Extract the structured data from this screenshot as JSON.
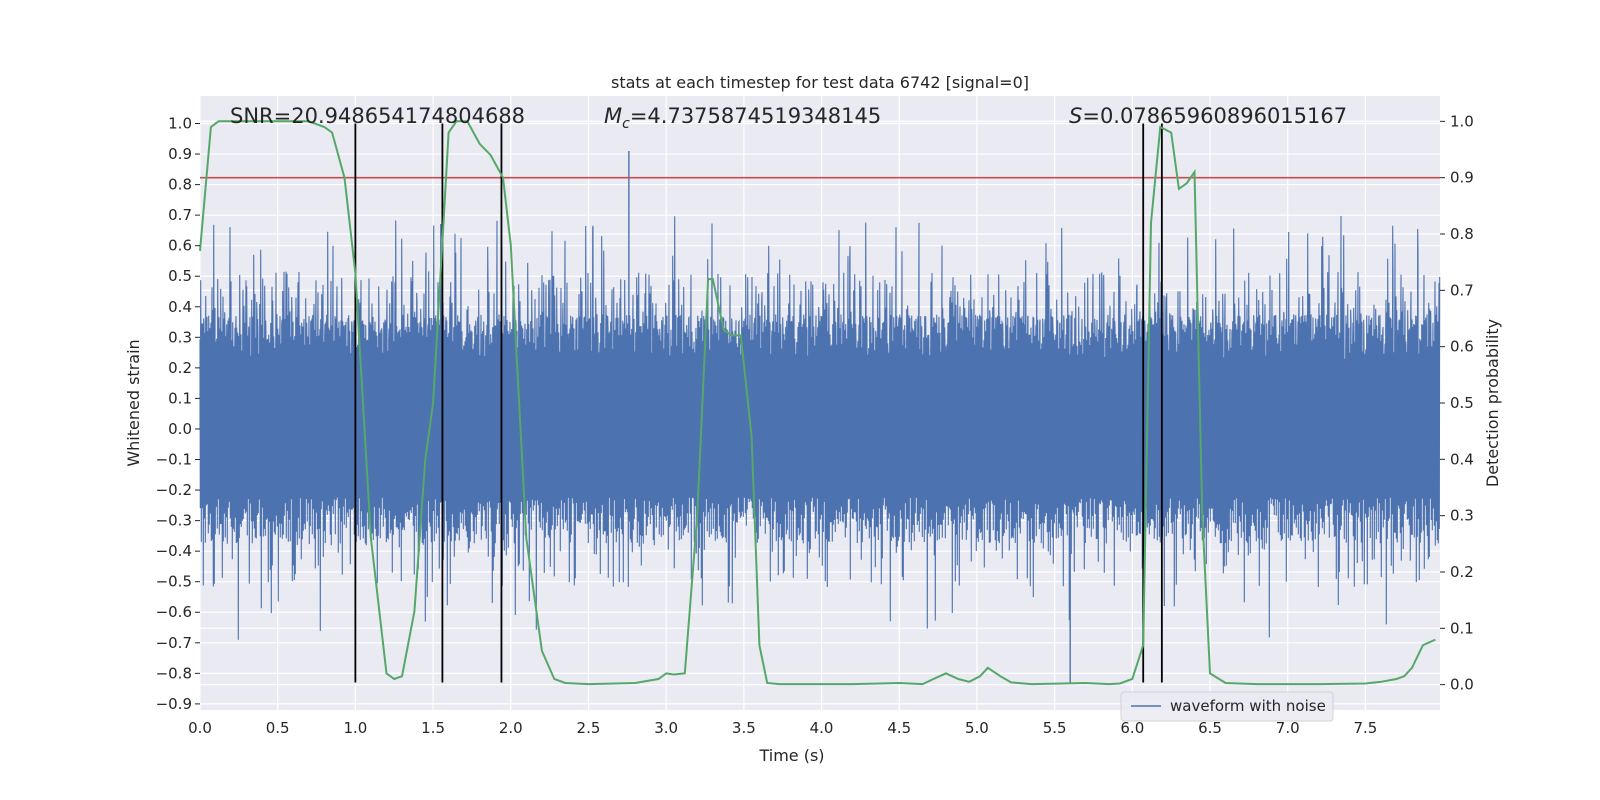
{
  "chart_data": {
    "type": "line",
    "title": "stats at each timestep for test data 6742 [signal=0]",
    "xlabel": "Time (s)",
    "ylabel": "Whitened strain",
    "y2label": "Detection probability",
    "xlim": [
      0.0,
      7.98
    ],
    "ylim": [
      -0.92,
      1.09
    ],
    "y2lim": [
      -0.045,
      1.045
    ],
    "xticks": [
      "0.0",
      "0.5",
      "1.0",
      "1.5",
      "2.0",
      "2.5",
      "3.0",
      "3.5",
      "4.0",
      "4.5",
      "5.0",
      "5.5",
      "6.0",
      "6.5",
      "7.0",
      "7.5"
    ],
    "yticks": [
      "1.0",
      "0.9",
      "0.8",
      "0.7",
      "0.6",
      "0.5",
      "0.4",
      "0.3",
      "0.2",
      "0.1",
      "0.0",
      "−0.1",
      "−0.2",
      "−0.3",
      "−0.4",
      "−0.5",
      "−0.6",
      "−0.7",
      "−0.8",
      "−0.9"
    ],
    "y2ticks": [
      "1.0",
      "0.9",
      "0.8",
      "0.7",
      "0.6",
      "0.5",
      "0.4",
      "0.3",
      "0.2",
      "0.1",
      "0.0"
    ],
    "grid": true,
    "legend_position": "lower-right",
    "annotations": {
      "snr": "SNR=20.948654174804688",
      "mc_symbol": "M",
      "mc_sub": "c",
      "mc_value": "=4.7375874519348145",
      "s_symbol": "S",
      "s_value": "=0.07865960896015167"
    },
    "series": [
      {
        "name": "waveform with noise",
        "axis": "left",
        "color": "#4c72b0",
        "envelope": {
          "core_amplitude": 0.3,
          "typical_peak": 0.45,
          "max_peak": 0.91,
          "min_peak": -0.83,
          "noise_seed": 6742
        }
      },
      {
        "name": "detection probability",
        "axis": "right",
        "color": "#55a868",
        "x": [
          0.0,
          0.07,
          0.12,
          0.2,
          0.3,
          0.5,
          0.7,
          0.8,
          0.85,
          0.93,
          1.0,
          1.1,
          1.2,
          1.25,
          1.3,
          1.38,
          1.45,
          1.5,
          1.55,
          1.6,
          1.65,
          1.72,
          1.8,
          1.87,
          1.95,
          2.0,
          2.1,
          2.2,
          2.28,
          2.35,
          2.5,
          2.8,
          2.95,
          3.0,
          3.05,
          3.12,
          3.2,
          3.27,
          3.3,
          3.37,
          3.42,
          3.48,
          3.55,
          3.6,
          3.65,
          3.73,
          3.8,
          4.2,
          4.5,
          4.65,
          4.72,
          4.8,
          4.88,
          4.95,
          5.02,
          5.07,
          5.15,
          5.22,
          5.35,
          5.7,
          5.85,
          5.92,
          6.0,
          6.07,
          6.12,
          6.18,
          6.25,
          6.3,
          6.35,
          6.4,
          6.45,
          6.5,
          6.6,
          6.8,
          7.2,
          7.5,
          7.6,
          7.7,
          7.75,
          7.8,
          7.87,
          7.95
        ],
        "values": [
          0.77,
          0.99,
          1.0,
          1.0,
          1.0,
          1.0,
          1.0,
          0.99,
          0.98,
          0.9,
          0.73,
          0.26,
          0.02,
          0.01,
          0.015,
          0.13,
          0.4,
          0.5,
          0.74,
          0.98,
          1.0,
          1.0,
          0.96,
          0.94,
          0.9,
          0.78,
          0.26,
          0.06,
          0.01,
          0.003,
          0.001,
          0.003,
          0.01,
          0.02,
          0.018,
          0.02,
          0.3,
          0.72,
          0.72,
          0.63,
          0.62,
          0.62,
          0.44,
          0.07,
          0.003,
          0.001,
          0.001,
          0.001,
          0.003,
          0.001,
          0.01,
          0.02,
          0.01,
          0.005,
          0.015,
          0.03,
          0.015,
          0.004,
          0.001,
          0.003,
          0.001,
          0.002,
          0.01,
          0.07,
          0.82,
          0.99,
          0.98,
          0.88,
          0.89,
          0.91,
          0.3,
          0.02,
          0.003,
          0.001,
          0.001,
          0.002,
          0.005,
          0.01,
          0.015,
          0.03,
          0.07,
          0.08
        ]
      }
    ],
    "threshold_line": {
      "axis": "right",
      "value": 0.9,
      "color": "#c44e52"
    },
    "vertical_markers": {
      "x": [
        1.0,
        1.56,
        1.94,
        6.07,
        6.19
      ],
      "ymin": -0.83,
      "ymax": 1.0,
      "color": "#000000"
    }
  }
}
